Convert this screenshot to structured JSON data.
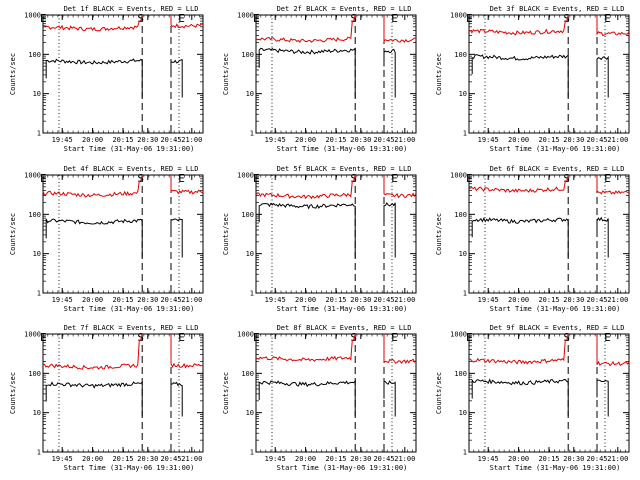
{
  "figure": {
    "colors": {
      "black": "#000000",
      "red": "#e00000",
      "background": "#ffffff"
    }
  },
  "chart_data": [
    {
      "type": "line",
      "title": "Det 1f BLACK = Events, RED = LLD",
      "xlabel": "Start Time (31-May-06 19:31:00)",
      "ylabel": "Counts/sec",
      "xticks": [
        "19:45",
        "20:00",
        "20:15",
        "20:30",
        "20:45",
        "21:00"
      ],
      "yticks": [
        "1",
        "10",
        "100",
        "1000"
      ],
      "ylim": [
        1,
        1000
      ],
      "yscale": "log",
      "markers": {
        "S": "20:30",
        "E": "21:00"
      },
      "series": [
        {
          "name": "Events",
          "color": "black",
          "segments": [
            {
              "start": 0.02,
              "end": 0.62,
              "level": 70
            },
            {
              "start": 0.8,
              "end": 0.87,
              "level": 75
            }
          ]
        },
        {
          "name": "LLD",
          "color": "red",
          "segments": [
            {
              "start": 0.0,
              "end": 0.62,
              "level": 500,
              "peak": 1000
            },
            {
              "start": 0.8,
              "end": 1.0,
              "level": 600
            }
          ]
        }
      ]
    },
    {
      "type": "line",
      "title": "Det 2f BLACK = Events, RED = LLD",
      "xlabel": "Start Time (31-May-06 19:31:00)",
      "ylabel": "Counts/sec",
      "xticks": [
        "19:45",
        "20:00",
        "20:15",
        "20:30",
        "20:45",
        "21:00"
      ],
      "yticks": [
        "1",
        "10",
        "100",
        "1000"
      ],
      "ylim": [
        1,
        1000
      ],
      "yscale": "log",
      "markers": {
        "S": "20:30",
        "E": "21:00"
      },
      "series": [
        {
          "name": "Events",
          "color": "black",
          "segments": [
            {
              "start": 0.02,
              "end": 0.62,
              "level": 130
            },
            {
              "start": 0.8,
              "end": 0.87,
              "level": 140
            }
          ]
        },
        {
          "name": "LLD",
          "color": "red",
          "segments": [
            {
              "start": 0.0,
              "end": 0.62,
              "level": 250,
              "peak": 1000
            },
            {
              "start": 0.8,
              "end": 1.0,
              "level": 260
            }
          ]
        }
      ]
    },
    {
      "type": "line",
      "title": "Det 3f BLACK = Events, RED = LLD",
      "xlabel": "Start Time (31-May-06 19:31:00)",
      "ylabel": "Counts/sec",
      "xticks": [
        "19:45",
        "20:00",
        "20:15",
        "20:30",
        "20:45",
        "21:00"
      ],
      "yticks": [
        "1",
        "10",
        "100",
        "1000"
      ],
      "ylim": [
        1,
        1000
      ],
      "yscale": "log",
      "markers": {
        "S": "20:30",
        "E": "21:00"
      },
      "series": [
        {
          "name": "Events",
          "color": "black",
          "segments": [
            {
              "start": 0.02,
              "end": 0.62,
              "level": 90
            },
            {
              "start": 0.8,
              "end": 0.87,
              "level": 95
            }
          ]
        },
        {
          "name": "LLD",
          "color": "red",
          "segments": [
            {
              "start": 0.0,
              "end": 0.62,
              "level": 400,
              "peak": 1000
            },
            {
              "start": 0.8,
              "end": 1.0,
              "level": 380
            }
          ]
        }
      ]
    },
    {
      "type": "line",
      "title": "Det 4f BLACK = Events, RED = LLD",
      "xlabel": "Start Time (31-May-06 19:31:00)",
      "ylabel": "Counts/sec",
      "xticks": [
        "19:45",
        "20:00",
        "20:15",
        "20:30",
        "20:45",
        "21:00"
      ],
      "yticks": [
        "1",
        "10",
        "100",
        "1000"
      ],
      "ylim": [
        1,
        1000
      ],
      "yscale": "log",
      "markers": {
        "S": "20:30",
        "E": "21:00"
      },
      "series": [
        {
          "name": "Events",
          "color": "black",
          "segments": [
            {
              "start": 0.02,
              "end": 0.62,
              "level": 70
            },
            {
              "start": 0.8,
              "end": 0.87,
              "level": 80
            }
          ]
        },
        {
          "name": "LLD",
          "color": "red",
          "segments": [
            {
              "start": 0.0,
              "end": 0.62,
              "level": 350,
              "peak": 1000
            },
            {
              "start": 0.8,
              "end": 1.0,
              "level": 420
            }
          ]
        }
      ]
    },
    {
      "type": "line",
      "title": "Det 5f BLACK = Events, RED = LLD",
      "xlabel": "Start Time (31-May-06 19:31:00)",
      "ylabel": "Counts/sec",
      "xticks": [
        "19:45",
        "20:00",
        "20:15",
        "20:30",
        "20:45",
        "21:00"
      ],
      "yticks": [
        "1",
        "10",
        "100",
        "1000"
      ],
      "ylim": [
        1,
        1000
      ],
      "yscale": "log",
      "markers": {
        "S": "20:30",
        "E": "21:00"
      },
      "series": [
        {
          "name": "Events",
          "color": "black",
          "segments": [
            {
              "start": 0.02,
              "end": 0.62,
              "level": 180
            },
            {
              "start": 0.8,
              "end": 0.87,
              "level": 200
            }
          ]
        },
        {
          "name": "LLD",
          "color": "red",
          "segments": [
            {
              "start": 0.0,
              "end": 0.62,
              "level": 320,
              "peak": 1000
            },
            {
              "start": 0.8,
              "end": 1.0,
              "level": 340
            }
          ]
        }
      ]
    },
    {
      "type": "line",
      "title": "Det 6f BLACK = Events, RED = LLD",
      "xlabel": "Start Time (31-May-06 19:31:00)",
      "ylabel": "Counts/sec",
      "xticks": [
        "19:45",
        "20:00",
        "20:15",
        "20:30",
        "20:45",
        "21:00"
      ],
      "yticks": [
        "1",
        "10",
        "100",
        "1000"
      ],
      "ylim": [
        1,
        1000
      ],
      "yscale": "log",
      "markers": {
        "S": "20:30",
        "E": "21:00"
      },
      "series": [
        {
          "name": "Events",
          "color": "black",
          "segments": [
            {
              "start": 0.02,
              "end": 0.62,
              "level": 75
            },
            {
              "start": 0.8,
              "end": 0.87,
              "level": 85
            }
          ]
        },
        {
          "name": "LLD",
          "color": "red",
          "segments": [
            {
              "start": 0.0,
              "end": 0.62,
              "level": 450,
              "peak": 1000
            },
            {
              "start": 0.8,
              "end": 1.0,
              "level": 400
            }
          ]
        }
      ]
    },
    {
      "type": "line",
      "title": "Det 7f BLACK = Events, RED = LLD",
      "xlabel": "Start Time (31-May-06 19:31:00)",
      "ylabel": "Counts/sec",
      "xticks": [
        "19:45",
        "20:00",
        "20:15",
        "20:30",
        "20:45",
        "21:00"
      ],
      "yticks": [
        "1",
        "10",
        "100",
        "1000"
      ],
      "ylim": [
        1,
        1000
      ],
      "yscale": "log",
      "markers": {
        "S": "20:30",
        "E": "21:00"
      },
      "series": [
        {
          "name": "Events",
          "color": "black",
          "segments": [
            {
              "start": 0.02,
              "end": 0.62,
              "level": 55
            },
            {
              "start": 0.8,
              "end": 0.87,
              "level": 60
            }
          ]
        },
        {
          "name": "LLD",
          "color": "red",
          "segments": [
            {
              "start": 0.0,
              "end": 0.62,
              "level": 160,
              "peak": 1000
            },
            {
              "start": 0.8,
              "end": 1.0,
              "level": 180
            }
          ]
        }
      ]
    },
    {
      "type": "line",
      "title": "Det 8f BLACK = Events, RED = LLD",
      "xlabel": "Start Time (31-May-06 19:31:00)",
      "ylabel": "Counts/sec",
      "xticks": [
        "19:45",
        "20:00",
        "20:15",
        "20:30",
        "20:45",
        "21:00"
      ],
      "yticks": [
        "1",
        "10",
        "100",
        "1000"
      ],
      "ylim": [
        1,
        1000
      ],
      "yscale": "log",
      "markers": {
        "S": "20:30",
        "E": "21:00"
      },
      "series": [
        {
          "name": "Events",
          "color": "black",
          "segments": [
            {
              "start": 0.02,
              "end": 0.62,
              "level": 60
            },
            {
              "start": 0.8,
              "end": 0.87,
              "level": 65
            }
          ]
        },
        {
          "name": "LLD",
          "color": "red",
          "segments": [
            {
              "start": 0.0,
              "end": 0.62,
              "level": 250,
              "peak": 1000
            },
            {
              "start": 0.8,
              "end": 1.0,
              "level": 230
            }
          ]
        }
      ]
    },
    {
      "type": "line",
      "title": "Det 9f BLACK = Events, RED = LLD",
      "xlabel": "Start Time (31-May-06 19:31:00)",
      "ylabel": "Counts/sec",
      "xticks": [
        "19:45",
        "20:00",
        "20:15",
        "20:30",
        "20:45",
        "21:00"
      ],
      "yticks": [
        "1",
        "10",
        "100",
        "1000"
      ],
      "ylim": [
        1,
        1000
      ],
      "yscale": "log",
      "markers": {
        "S": "20:30",
        "E": "21:00"
      },
      "series": [
        {
          "name": "Events",
          "color": "black",
          "segments": [
            {
              "start": 0.02,
              "end": 0.62,
              "level": 65
            },
            {
              "start": 0.8,
              "end": 0.87,
              "level": 70
            }
          ]
        },
        {
          "name": "LLD",
          "color": "red",
          "segments": [
            {
              "start": 0.0,
              "end": 0.62,
              "level": 220,
              "peak": 1000
            },
            {
              "start": 0.8,
              "end": 1.0,
              "level": 200
            }
          ]
        }
      ]
    }
  ]
}
